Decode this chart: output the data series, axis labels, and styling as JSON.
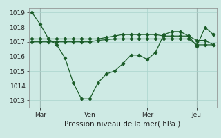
{
  "bg_color": "#ceeae4",
  "grid_color": "#aad4cc",
  "line_color": "#1a5c28",
  "title_ylabel": "Pression niveau de la mer( hPa )",
  "ylim": [
    1012.5,
    1019.3
  ],
  "yticks": [
    1013,
    1014,
    1015,
    1016,
    1017,
    1018,
    1019
  ],
  "day_labels": [
    "| Mar",
    "Ven",
    "Mer",
    "| Jeu"
  ],
  "day_positions": [
    0.5,
    3.5,
    7.0,
    10.0
  ],
  "vline_positions": [
    0.5,
    10.0
  ],
  "series1_x": [
    0.0,
    0.5,
    1.0,
    1.5,
    2.0,
    2.5,
    3.0,
    3.5,
    4.0,
    4.5,
    5.0,
    5.5,
    6.0,
    6.5,
    7.0,
    7.5,
    8.0,
    8.5,
    9.0,
    9.5,
    10.0,
    10.5,
    11.0
  ],
  "series1_y": [
    1019.0,
    1018.2,
    1017.2,
    1016.8,
    1015.9,
    1014.2,
    1013.1,
    1013.1,
    1014.2,
    1014.8,
    1015.0,
    1015.5,
    1016.1,
    1016.1,
    1015.8,
    1016.3,
    1017.5,
    1017.7,
    1017.7,
    1017.4,
    1016.7,
    1018.0,
    1017.5
  ],
  "series2_x": [
    0.0,
    0.5,
    1.0,
    1.5,
    2.0,
    2.5,
    3.0,
    3.5,
    4.0,
    4.5,
    5.0,
    5.5,
    6.0,
    6.5,
    7.0,
    7.5,
    8.0,
    8.5,
    9.0,
    9.5,
    10.0,
    10.5,
    11.0
  ],
  "series2_y": [
    1017.2,
    1017.2,
    1017.2,
    1017.2,
    1017.2,
    1017.2,
    1017.2,
    1017.2,
    1017.2,
    1017.3,
    1017.4,
    1017.5,
    1017.5,
    1017.5,
    1017.5,
    1017.5,
    1017.4,
    1017.4,
    1017.4,
    1017.4,
    1017.1,
    1017.1,
    1016.8
  ],
  "series3_x": [
    0.0,
    0.5,
    1.0,
    1.5,
    2.0,
    2.5,
    3.0,
    3.5,
    4.0,
    4.5,
    5.0,
    5.5,
    6.0,
    6.5,
    7.0,
    7.5,
    8.0,
    8.5,
    9.0,
    9.5,
    10.0,
    10.5,
    11.0
  ],
  "series3_y": [
    1017.0,
    1017.0,
    1017.0,
    1017.0,
    1017.0,
    1017.0,
    1017.0,
    1017.0,
    1017.1,
    1017.15,
    1017.2,
    1017.2,
    1017.2,
    1017.2,
    1017.2,
    1017.2,
    1017.2,
    1017.2,
    1017.2,
    1017.2,
    1016.8,
    1016.8,
    1016.8
  ],
  "xlabel_fontsize": 7.5,
  "tick_fontsize": 6.5
}
